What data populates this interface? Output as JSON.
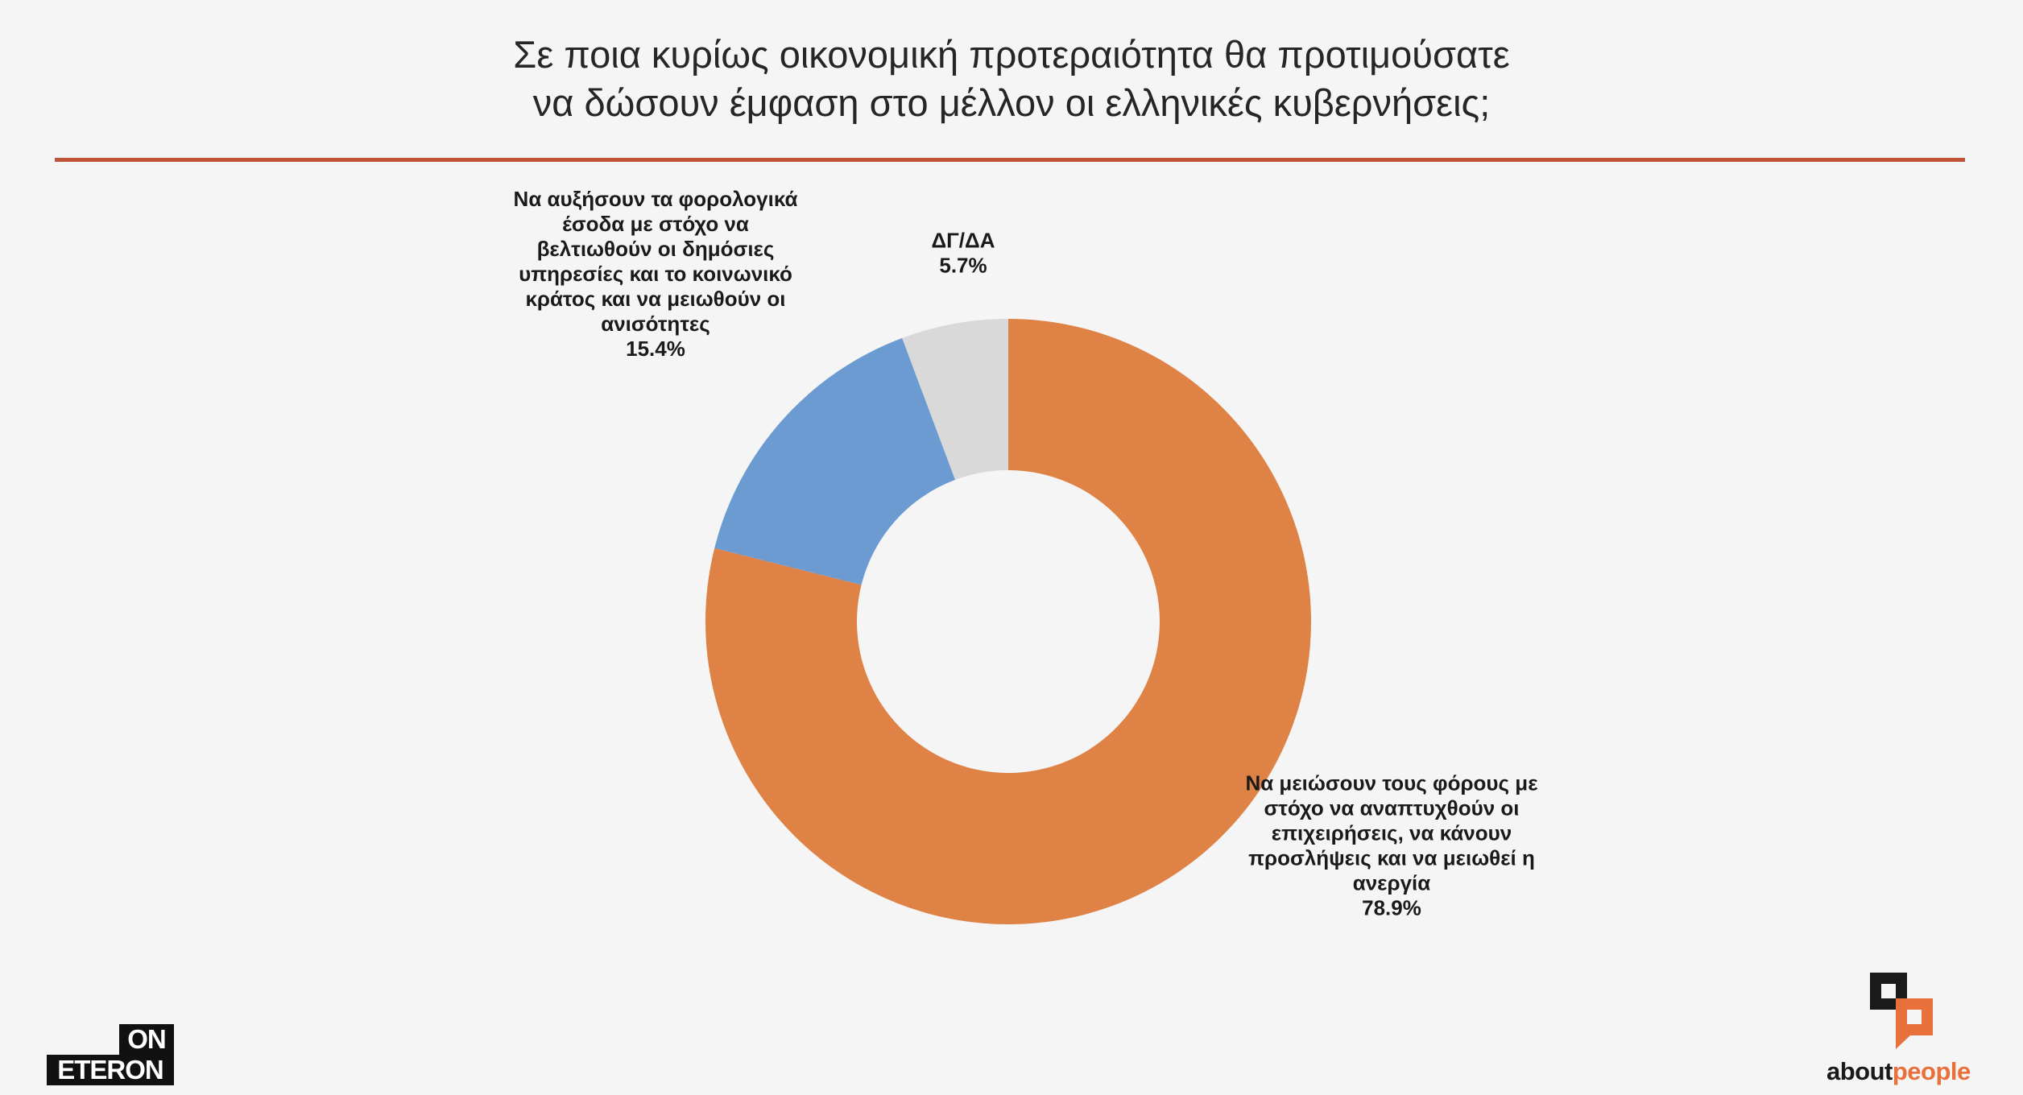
{
  "title_line1": "Σε ποια κυρίως οικονομική προτεραιότητα θα προτιμούσατε",
  "title_line2": "να δώσουν έμφαση στο μέλλον οι ελληνικές κυβερνήσεις;",
  "chart_data": {
    "type": "pie",
    "variant": "donut",
    "title": "Σε ποια κυρίως οικονομική προτεραιότητα θα προτιμούσατε να δώσουν έμφαση στο μέλλον οι ελληνικές κυβερνήσεις;",
    "slices": [
      {
        "label_lines": [
          "Να μειώσουν τους φόρους με",
          "στόχο να αναπτυχθούν οι",
          "επιχειρήσεις, να κάνουν",
          "προσλήψεις και να μειωθεί η",
          "ανεργία"
        ],
        "value": 78.9,
        "value_label": "78.9%",
        "color": "#df8246"
      },
      {
        "label_lines": [
          "Να αυξήσουν τα φορολογικά",
          "έσοδα με στόχο να",
          "βελτιωθούν οι δημόσιες",
          "υπηρεσίες και το κοινωνικό",
          "κράτος και να μειωθούν οι",
          "ανισότητες"
        ],
        "value": 15.4,
        "value_label": "15.4%",
        "color": "#6b9bd0"
      },
      {
        "label_lines": [
          "ΔΓ/ΔΑ"
        ],
        "value": 5.7,
        "value_label": "5.7%",
        "color": "#d9d9d9"
      }
    ],
    "start_angle": "12 o'clock",
    "direction": "clockwise",
    "legend": "none"
  },
  "logos": {
    "eteron_top": "ON",
    "eteron_bottom": "ETERON",
    "about_part1": "about",
    "about_part2": "people",
    "about_mark_colors": [
      "#1a1a1a",
      "#e8703a"
    ]
  }
}
